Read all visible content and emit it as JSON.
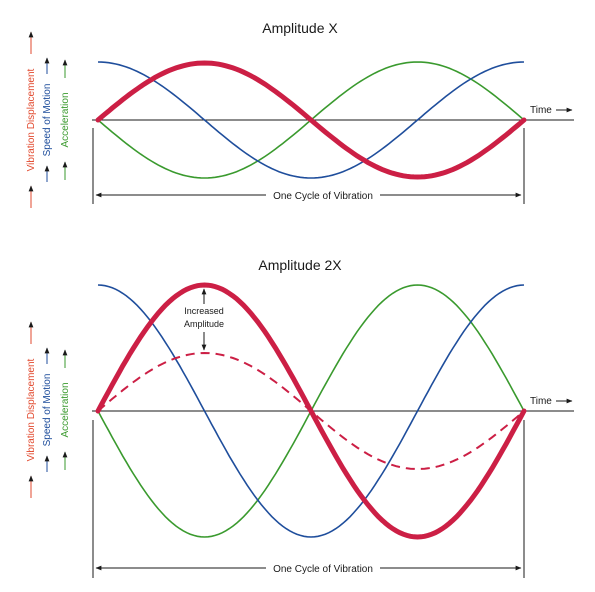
{
  "colors": {
    "displacement": "#cc1f45",
    "speed": "#1f4e9c",
    "acceleration": "#3a9a2e",
    "axis": "#1a1a1a",
    "vlabel_red": "#e24a2f"
  },
  "axis_labels": {
    "displacement": "Vibration Displacement",
    "speed": "Speed of Motion",
    "acceleration": "Acceleration"
  },
  "panels": [
    {
      "title": "Amplitude X",
      "time_label": "Time",
      "cycle_label": "One Cycle of Vibration",
      "annotation_lines": []
    },
    {
      "title": "Amplitude 2X",
      "time_label": "Time",
      "cycle_label": "One Cycle of Vibration",
      "annotation_lines": [
        "Increased",
        "Amplitude"
      ]
    }
  ]
}
